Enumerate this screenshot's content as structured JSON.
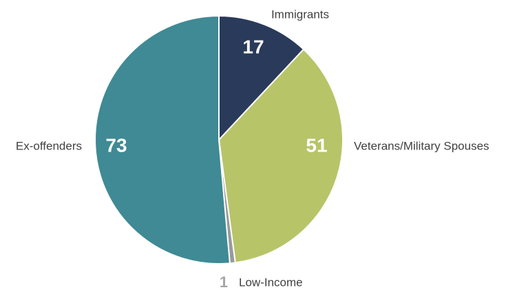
{
  "chart_data": {
    "type": "pie",
    "title": "",
    "categories": [
      "Immigrants",
      "Veterans/Military Spouses",
      "Low-Income",
      "Ex-offenders"
    ],
    "values": [
      17,
      51,
      1,
      73
    ],
    "colors": [
      "#2a3a5a",
      "#b8c468",
      "#9a9a9a",
      "#3f8a94"
    ],
    "value_label_colors": [
      "#ffffff",
      "#ffffff",
      "#a6a6a6",
      "#ffffff"
    ],
    "label_color": "#404040",
    "slice_edge_color": "#ffffff",
    "start": "12 o'clock",
    "direction": "clockwise",
    "legend": "none"
  }
}
